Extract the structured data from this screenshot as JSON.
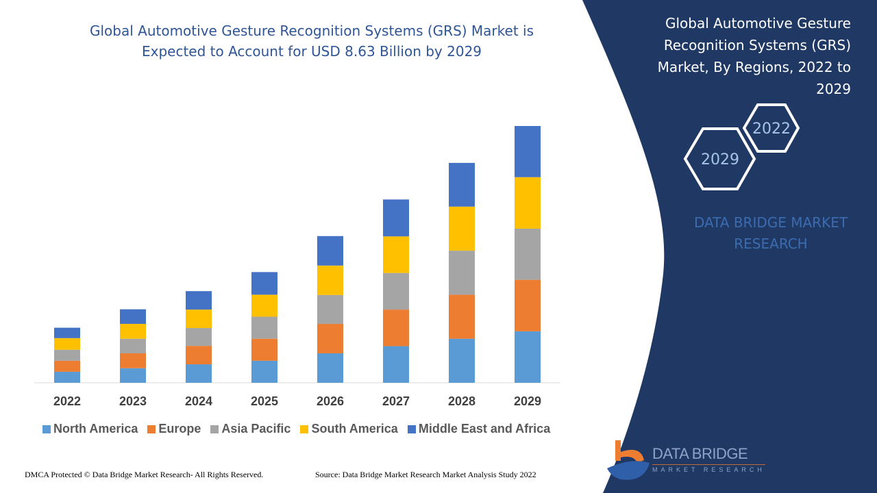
{
  "header": {
    "title_line1": "Global Automotive Gesture Recognition Systems (GRS) Market is",
    "title_line2": "Expected to Account for USD 8.63 Billion by 2029"
  },
  "side_panel": {
    "title_lines": [
      "Global Automotive Gesture",
      "Recognition Systems (GRS)",
      "Market, By Regions, 2022 to",
      "2029"
    ],
    "hex_start_year": "2022",
    "hex_end_year": "2029",
    "brand_line1": "DATA BRIDGE MARKET",
    "brand_line2": "RESEARCH",
    "panel_color": "#203864"
  },
  "logo": {
    "name": "DATA BRIDGE",
    "tagline": "MARKET RESEARCH"
  },
  "footer": {
    "copyright": "DMCA Protected © Data Bridge Market Research- All Rights Reserved.",
    "source": "Source: Data Bridge Market Research Market Analysis Study 2022"
  },
  "chart_data": {
    "type": "bar",
    "stacked": true,
    "categories": [
      "2022",
      "2023",
      "2024",
      "2025",
      "2026",
      "2027",
      "2028",
      "2029"
    ],
    "series": [
      {
        "name": "North America",
        "color": "#5b9bd5",
        "values": [
          0.37,
          0.49,
          0.62,
          0.74,
          0.99,
          1.23,
          1.48,
          1.73
        ]
      },
      {
        "name": "Europe",
        "color": "#ed7d31",
        "values": [
          0.37,
          0.5,
          0.62,
          0.74,
          0.99,
          1.23,
          1.48,
          1.73
        ]
      },
      {
        "name": "Asia Pacific",
        "color": "#a5a5a5",
        "values": [
          0.37,
          0.49,
          0.6,
          0.74,
          0.97,
          1.23,
          1.48,
          1.72
        ]
      },
      {
        "name": "South America",
        "color": "#ffc000",
        "values": [
          0.39,
          0.5,
          0.62,
          0.74,
          0.99,
          1.23,
          1.48,
          1.73
        ]
      },
      {
        "name": "Middle East and Africa",
        "color": "#4472c4",
        "values": [
          0.35,
          0.49,
          0.62,
          0.76,
          0.99,
          1.24,
          1.47,
          1.72
        ]
      }
    ],
    "ylim": [
      0,
      8.63
    ],
    "grid": false,
    "legend": "bottom",
    "xlabel": "",
    "ylabel": ""
  }
}
